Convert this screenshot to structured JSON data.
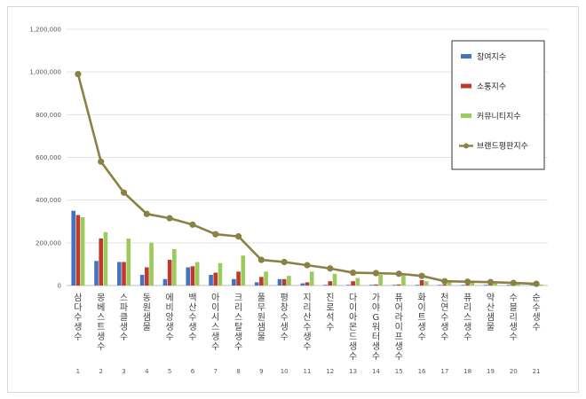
{
  "chart_data": {
    "type": "bar",
    "categories": [
      "삼다수생수",
      "몽베스트생수",
      "스파클생수",
      "동원샘물",
      "에비앙생수",
      "백산수생수",
      "아이시스생수",
      "크리스탈생수",
      "풀무원샘물",
      "평창수생수",
      "지리산수생수",
      "진로석수",
      "다이아몬드생수",
      "가야G워터생수",
      "퓨어라이프생수",
      "화이트생수",
      "천연수생수",
      "퓨리스생수",
      "약산샘물",
      "수블리생수",
      "순수생수"
    ],
    "ranks": [
      "1",
      "2",
      "3",
      "4",
      "5",
      "6",
      "7",
      "8",
      "9",
      "10",
      "11",
      "12",
      "13",
      "14",
      "15",
      "16",
      "17",
      "18",
      "19",
      "20",
      "21"
    ],
    "series": [
      {
        "name": "참여지수",
        "kind": "bar",
        "color": "#4472c4",
        "values": [
          350000,
          115000,
          110000,
          50000,
          30000,
          85000,
          50000,
          30000,
          15000,
          30000,
          10000,
          3000,
          3000,
          3000,
          3000,
          3000,
          3000,
          3000,
          3000,
          3000,
          3000
        ]
      },
      {
        "name": "소통지수",
        "kind": "bar",
        "color": "#c0392b",
        "values": [
          330000,
          220000,
          110000,
          85000,
          120000,
          90000,
          60000,
          65000,
          40000,
          30000,
          15000,
          20000,
          20000,
          5000,
          5000,
          25000,
          5000,
          5000,
          5000,
          5000,
          5000
        ]
      },
      {
        "name": "커뮤니티지수",
        "kind": "bar",
        "color": "#9bcb5a",
        "values": [
          320000,
          250000,
          220000,
          200000,
          170000,
          110000,
          105000,
          140000,
          65000,
          45000,
          65000,
          55000,
          35000,
          50000,
          50000,
          20000,
          15000,
          15000,
          10000,
          10000,
          5000
        ]
      },
      {
        "name": "브랜드평판지수",
        "kind": "line",
        "color": "#8b8144",
        "values": [
          990000,
          580000,
          435000,
          335000,
          315000,
          285000,
          240000,
          230000,
          120000,
          110000,
          95000,
          80000,
          60000,
          58000,
          55000,
          45000,
          20000,
          18000,
          16000,
          12000,
          8000
        ]
      }
    ],
    "ylim": [
      0,
      1200000
    ],
    "yticks": [
      "0",
      "200,000",
      "400,000",
      "600,000",
      "800,000",
      "1,000,000",
      "1,200,000"
    ],
    "grid": true,
    "legend_position": "top-right"
  }
}
